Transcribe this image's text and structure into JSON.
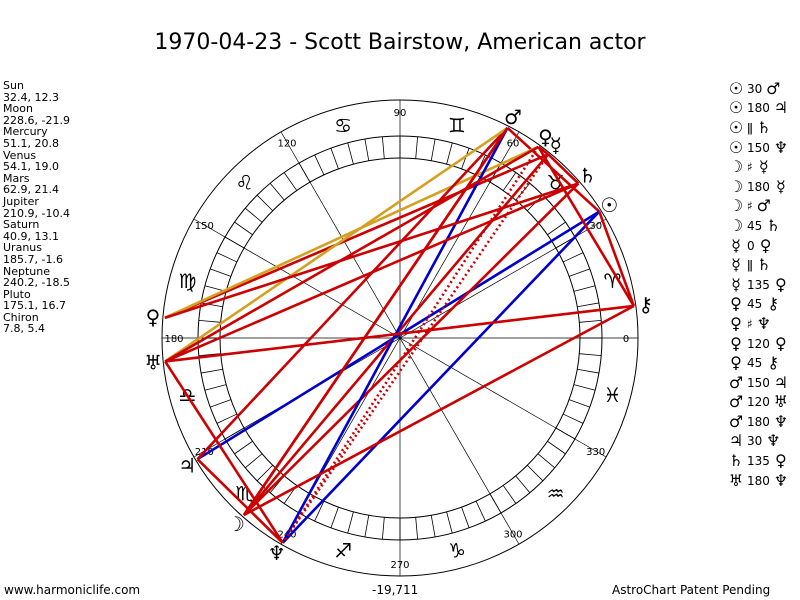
{
  "title": "1970-04-23 - Scott Bairstow, American actor",
  "planets": [
    {
      "name": "Sun",
      "coords": "32.4, 12.3"
    },
    {
      "name": "Moon",
      "coords": "228.6, -21.9"
    },
    {
      "name": "Mercury",
      "coords": "51.1, 20.8"
    },
    {
      "name": "Venus",
      "coords": "54.1, 19.0"
    },
    {
      "name": "Mars",
      "coords": "62.9, 21.4"
    },
    {
      "name": "Jupiter",
      "coords": "210.9, -10.4"
    },
    {
      "name": "Saturn",
      "coords": "40.9, 13.1"
    },
    {
      "name": "Uranus",
      "coords": "185.7, -1.6"
    },
    {
      "name": "Neptune",
      "coords": "240.2, -18.5"
    },
    {
      "name": "Pluto",
      "coords": "175.1, 16.7"
    },
    {
      "name": "Chiron",
      "coords": "7.8, 5.4"
    }
  ],
  "aspects": [
    {
      "p1": "☉",
      "angle": "30",
      "p2": "♂"
    },
    {
      "p1": "☉",
      "angle": "180",
      "p2": "♃"
    },
    {
      "p1": "☉",
      "angle": "ǁ",
      "p2": "♄"
    },
    {
      "p1": "☉",
      "angle": "150",
      "p2": "♆"
    },
    {
      "p1": "☽",
      "angle": "♯",
      "p2": "☿"
    },
    {
      "p1": "☽",
      "angle": "180",
      "p2": "☿"
    },
    {
      "p1": "☽",
      "angle": "♯",
      "p2": "♂"
    },
    {
      "p1": "☽",
      "angle": "45",
      "p2": "♄"
    },
    {
      "p1": "☿",
      "angle": "0",
      "p2": "♀"
    },
    {
      "p1": "☿",
      "angle": "ǁ",
      "p2": "♄"
    },
    {
      "p1": "☿",
      "angle": "135",
      "p2": "♀"
    },
    {
      "p1": "♀",
      "angle": "45",
      "p2": "⚷"
    },
    {
      "p1": "♀",
      "angle": "♯",
      "p2": "♆"
    },
    {
      "p1": "♀",
      "angle": "120",
      "p2": "♀"
    },
    {
      "p1": "♀",
      "angle": "45",
      "p2": "⚷"
    },
    {
      "p1": "♂",
      "angle": "150",
      "p2": "♃"
    },
    {
      "p1": "♂",
      "angle": "120",
      "p2": "♅"
    },
    {
      "p1": "♂",
      "angle": "180",
      "p2": "♆"
    },
    {
      "p1": "♃",
      "angle": "30",
      "p2": "♆"
    },
    {
      "p1": "♄",
      "angle": "135",
      "p2": "♀"
    },
    {
      "p1": "♅",
      "angle": "180",
      "p2": "♆"
    }
  ],
  "wheel": {
    "degree_labels": [
      {
        "text": "90",
        "deg": 90
      },
      {
        "text": "120",
        "deg": 120
      },
      {
        "text": "150",
        "deg": 150
      },
      {
        "text": "180",
        "deg": 180
      },
      {
        "text": "270",
        "deg": 270
      },
      {
        "text": "300",
        "deg": 300
      },
      {
        "text": "330",
        "deg": 330
      },
      {
        "text": "0",
        "deg": 0
      },
      {
        "text": "60",
        "deg": 60
      },
      {
        "text": "30",
        "deg": 30
      },
      {
        "text": "210",
        "deg": 210
      },
      {
        "text": "240",
        "deg": 240
      }
    ],
    "zodiac_signs": [
      {
        "glyph": "♓",
        "deg": 345
      },
      {
        "glyph": "♒",
        "deg": 315
      },
      {
        "glyph": "♑",
        "deg": 285
      },
      {
        "glyph": "♐",
        "deg": 255
      },
      {
        "glyph": "♏",
        "deg": 225
      },
      {
        "glyph": "♎",
        "deg": 195
      },
      {
        "glyph": "♍",
        "deg": 165
      },
      {
        "glyph": "♌",
        "deg": 135
      },
      {
        "glyph": "♋",
        "deg": 105
      },
      {
        "glyph": "♊",
        "deg": 75
      },
      {
        "glyph": "♉",
        "deg": 45
      },
      {
        "glyph": "♈",
        "deg": 15
      }
    ],
    "planet_glyphs": [
      {
        "glyph": "☉",
        "deg": 32.4,
        "color": "#000"
      },
      {
        "glyph": "☽",
        "deg": 228.6,
        "color": "#000"
      },
      {
        "glyph": "☿",
        "deg": 51.1,
        "color": "#000"
      },
      {
        "glyph": "♀",
        "deg": 54.1,
        "color": "#000"
      },
      {
        "glyph": "♂",
        "deg": 62.9,
        "color": "#000"
      },
      {
        "glyph": "♃",
        "deg": 210.9,
        "color": "#000"
      },
      {
        "glyph": "♄",
        "deg": 40.9,
        "color": "#000"
      },
      {
        "glyph": "♅",
        "deg": 185.7,
        "color": "#000"
      },
      {
        "glyph": "♆",
        "deg": 240.2,
        "color": "#000"
      },
      {
        "glyph": "♀",
        "deg": 175.1,
        "color": "#000"
      },
      {
        "glyph": "⚷",
        "deg": 7.8,
        "color": "#000"
      }
    ],
    "aspect_lines": [
      {
        "from": 32.4,
        "to": 62.9,
        "color": "#cc0000",
        "style": "solid"
      },
      {
        "from": 32.4,
        "to": 210.9,
        "color": "#0000cc",
        "style": "solid"
      },
      {
        "from": 32.4,
        "to": 240.2,
        "color": "#0000cc",
        "style": "solid"
      },
      {
        "from": 228.6,
        "to": 51.1,
        "color": "#cc0000",
        "style": "solid"
      },
      {
        "from": 228.6,
        "to": 62.9,
        "color": "#cc0000",
        "style": "solid"
      },
      {
        "from": 228.6,
        "to": 40.9,
        "color": "#cc0000",
        "style": "solid"
      },
      {
        "from": 51.1,
        "to": 54.1,
        "color": "#cc0000",
        "style": "solid"
      },
      {
        "from": 51.1,
        "to": 40.9,
        "color": "#cc0000",
        "style": "solid"
      },
      {
        "from": 51.1,
        "to": 175.1,
        "color": "#cc0000",
        "style": "solid"
      },
      {
        "from": 54.1,
        "to": 7.8,
        "color": "#cc0000",
        "style": "solid"
      },
      {
        "from": 54.1,
        "to": 240.2,
        "color": "#cc0000",
        "style": "dotted"
      },
      {
        "from": 54.1,
        "to": 175.1,
        "color": "#d4a020",
        "style": "solid"
      },
      {
        "from": 62.9,
        "to": 210.9,
        "color": "#cc0000",
        "style": "solid"
      },
      {
        "from": 62.9,
        "to": 185.7,
        "color": "#d4a020",
        "style": "solid"
      },
      {
        "from": 62.9,
        "to": 240.2,
        "color": "#0000cc",
        "style": "solid"
      },
      {
        "from": 210.9,
        "to": 240.2,
        "color": "#cc0000",
        "style": "solid"
      },
      {
        "from": 40.9,
        "to": 175.1,
        "color": "#cc0000",
        "style": "solid"
      },
      {
        "from": 185.7,
        "to": 7.8,
        "color": "#cc0000",
        "style": "solid"
      },
      {
        "from": 185.7,
        "to": 40.9,
        "color": "#cc0000",
        "style": "solid"
      },
      {
        "from": 185.7,
        "to": 240.2,
        "color": "#cc0000",
        "style": "solid"
      },
      {
        "from": 32.4,
        "to": 7.8,
        "color": "#cc0000",
        "style": "solid"
      },
      {
        "from": 7.8,
        "to": 228.6,
        "color": "#cc0000",
        "style": "solid"
      },
      {
        "from": 51.1,
        "to": 240.2,
        "color": "#cc0000",
        "style": "dotted"
      },
      {
        "from": 62.9,
        "to": 228.6,
        "color": "#cc0000",
        "style": "solid"
      },
      {
        "from": 54.1,
        "to": 185.7,
        "color": "#cc0000",
        "style": "solid"
      }
    ]
  },
  "footer": {
    "left": "www.harmoniclife.com",
    "mid": "-19,711",
    "right": "AstroChart Patent Pending"
  }
}
